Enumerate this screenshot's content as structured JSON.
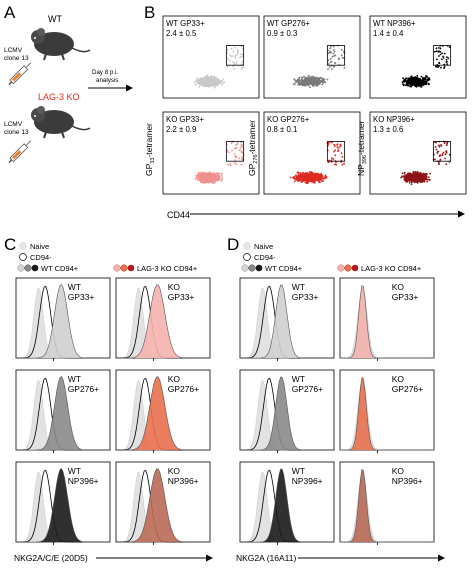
{
  "panel_letters": {
    "a": "A",
    "b": "B",
    "c": "C",
    "d": "D"
  },
  "panel_a": {
    "wt_label": "WT",
    "ko_label": "LAG-3 KO",
    "lcmv_label_1": "LCMV",
    "lcmv_label_2": "clone 13",
    "day_label_1": "Day 8 p.i.",
    "day_label_2": "analysis"
  },
  "panel_b": {
    "x_axis_label": "CD44",
    "y_axis_labels": [
      {
        "main": "GP",
        "sub": "33",
        "rest": "-tetramer"
      },
      {
        "main": "GP",
        "sub": "276",
        "rest": "-tetramer"
      },
      {
        "main": "NP",
        "sub": "396",
        "rest": "-tetramer"
      }
    ],
    "plots": [
      {
        "label": "WT GP33+",
        "value": "2.4 ± 0.5",
        "color": "#c8c8c8"
      },
      {
        "label": "WT GP276+",
        "value": "0.9 ± 0.3",
        "color": "#7a7a7a"
      },
      {
        "label": "WT NP396+",
        "value": "1.4 ± 0.4",
        "color": "#000000"
      },
      {
        "label": "KO GP33+",
        "value": "2.2 ± 0.9",
        "color": "#ef8f8f"
      },
      {
        "label": "KO GP276+",
        "value": "0.8 ± 0.1",
        "color": "#e02a20"
      },
      {
        "label": "KO NP396+",
        "value": "1.3 ± 0.6",
        "color": "#8c1414"
      }
    ]
  },
  "legend_c": {
    "naive": "Naive",
    "cd94neg": "CD94-",
    "wt": "WT CD94+",
    "ko": "LAG-3 KO CD94+"
  },
  "legend_d": {
    "naive": "Naive",
    "cd94neg": "CD94-",
    "wt": "WT CD94+",
    "ko": "LAG-3 KO CD94+"
  },
  "panel_c": {
    "x_axis_label": "NKG2A/C/E (20D5)",
    "wt_labels": [
      [
        "WT",
        "GP33+"
      ],
      [
        "WT",
        "GP276+"
      ],
      [
        "WT",
        "NP396+"
      ]
    ],
    "ko_labels": [
      [
        "KO",
        "GP33+"
      ],
      [
        "KO",
        "GP276+"
      ],
      [
        "KO",
        "NP396+"
      ]
    ]
  },
  "panel_d": {
    "x_axis_label": "NKG2A (16A11)",
    "wt_labels": [
      [
        "WT",
        "GP33+"
      ],
      [
        "WT",
        "GP276+"
      ],
      [
        "WT",
        "NP396+"
      ]
    ],
    "ko_labels": [
      [
        "KO",
        "GP33+"
      ],
      [
        "KO",
        "GP276+"
      ],
      [
        "KO",
        "NP396+"
      ]
    ]
  },
  "colors": {
    "wt_gp33": "#cfcfcf",
    "wt_gp276": "#8a8a8a",
    "wt_np396": "#1a1a1a",
    "ko_gp33": "#f4b3ae",
    "ko_gp276": "#e8704d",
    "ko_np396": "#b86a55",
    "naive": "#e2e2e2"
  }
}
